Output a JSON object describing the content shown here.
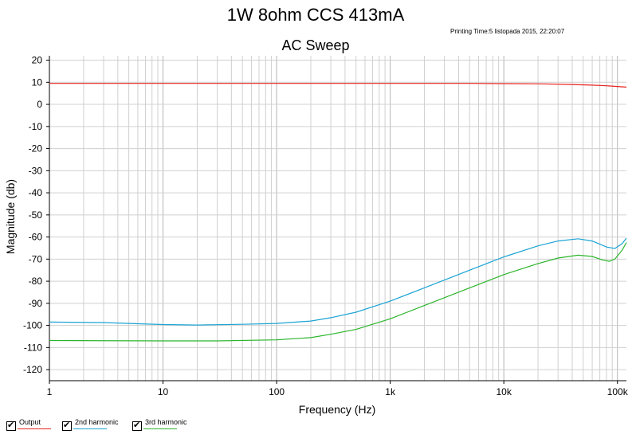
{
  "chart_data": {
    "type": "line",
    "title": "1W 8ohm CCS 413mA",
    "subtitle": "AC Sweep",
    "print_time": "Printing Time:5 listopada 2015, 22:20:07",
    "xlabel": "Frequency (Hz)",
    "ylabel": "Magnitude (db)",
    "x_scale": "log",
    "xlim": [
      1,
      120000
    ],
    "ylim": [
      -125,
      22
    ],
    "grid": true,
    "x_ticks": [
      {
        "value": 1,
        "label": "1"
      },
      {
        "value": 10,
        "label": "10"
      },
      {
        "value": 100,
        "label": "100"
      },
      {
        "value": 1000,
        "label": "1k"
      },
      {
        "value": 10000,
        "label": "10k"
      },
      {
        "value": 100000,
        "label": "100k"
      }
    ],
    "y_ticks": [
      20,
      10,
      0,
      -10,
      -20,
      -30,
      -40,
      -50,
      -60,
      -70,
      -80,
      -90,
      -100,
      -110,
      -120
    ],
    "legend_position": "bottom-left",
    "series": [
      {
        "name": "Output",
        "color": "#e8231e",
        "points": [
          [
            1,
            9.5
          ],
          [
            10,
            9.5
          ],
          [
            100,
            9.5
          ],
          [
            1000,
            9.5
          ],
          [
            5000,
            9.5
          ],
          [
            10000,
            9.4
          ],
          [
            20000,
            9.3
          ],
          [
            40000,
            9.0
          ],
          [
            60000,
            8.7
          ],
          [
            80000,
            8.4
          ],
          [
            100000,
            8.1
          ],
          [
            120000,
            7.8
          ]
        ]
      },
      {
        "name": "2nd harmonic",
        "color": "#1ba4d4",
        "points": [
          [
            1,
            -98.5
          ],
          [
            3,
            -98.7
          ],
          [
            5,
            -99.1
          ],
          [
            10,
            -99.6
          ],
          [
            20,
            -99.8
          ],
          [
            50,
            -99.5
          ],
          [
            100,
            -99.1
          ],
          [
            200,
            -98.0
          ],
          [
            300,
            -96.5
          ],
          [
            500,
            -94.0
          ],
          [
            1000,
            -89.0
          ],
          [
            2000,
            -83.0
          ],
          [
            5000,
            -75.0
          ],
          [
            10000,
            -69.0
          ],
          [
            20000,
            -64.0
          ],
          [
            30000,
            -61.8
          ],
          [
            45000,
            -60.8
          ],
          [
            60000,
            -61.8
          ],
          [
            80000,
            -64.5
          ],
          [
            95000,
            -65.2
          ],
          [
            110000,
            -63.0
          ],
          [
            120000,
            -60.5
          ]
        ]
      },
      {
        "name": "3rd harmonic",
        "color": "#2bb52b",
        "points": [
          [
            1,
            -106.8
          ],
          [
            10,
            -107.0
          ],
          [
            30,
            -107.0
          ],
          [
            100,
            -106.5
          ],
          [
            200,
            -105.5
          ],
          [
            300,
            -104.0
          ],
          [
            500,
            -101.8
          ],
          [
            1000,
            -97.0
          ],
          [
            2000,
            -91.0
          ],
          [
            5000,
            -83.0
          ],
          [
            10000,
            -77.0
          ],
          [
            20000,
            -72.0
          ],
          [
            30000,
            -69.5
          ],
          [
            45000,
            -68.2
          ],
          [
            60000,
            -68.8
          ],
          [
            75000,
            -70.5
          ],
          [
            85000,
            -71.0
          ],
          [
            95000,
            -70.0
          ],
          [
            110000,
            -66.0
          ],
          [
            120000,
            -62.5
          ]
        ]
      }
    ]
  }
}
